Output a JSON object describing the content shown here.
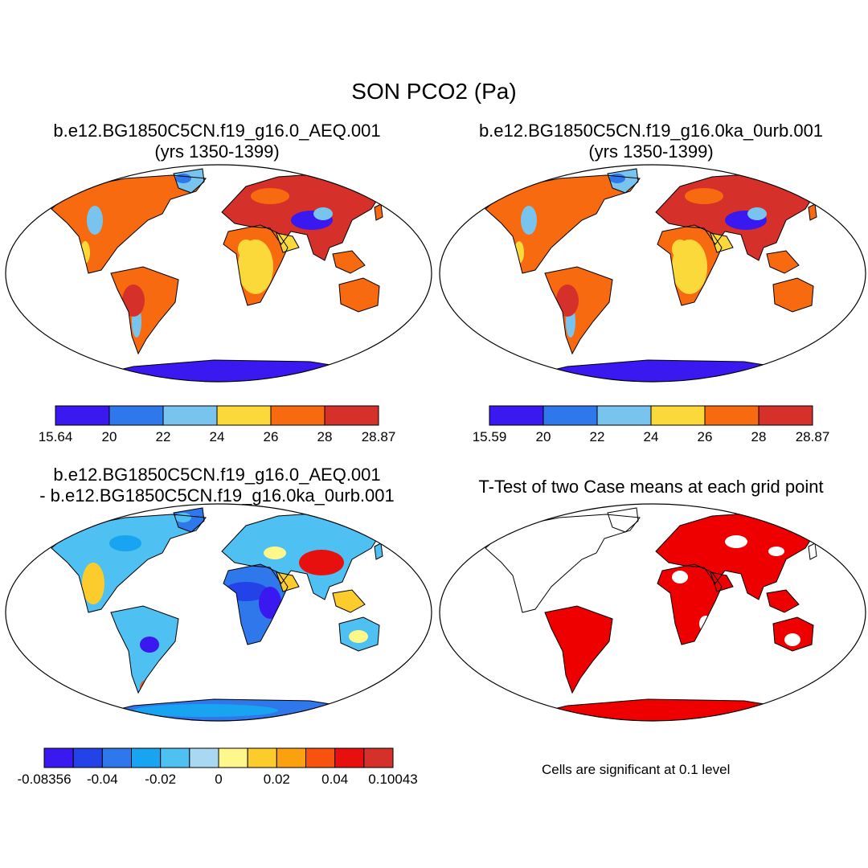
{
  "main_title": "SON PCO2 (Pa)",
  "panels": [
    {
      "title_line1": "b.e12.BG1850C5CN.f19_g16.0_AEQ.001",
      "title_line2": "(yrs 1350-1399)",
      "colorbar": {
        "labels": [
          "15.64",
          "20",
          "22",
          "24",
          "26",
          "28",
          "28.87"
        ],
        "colors": [
          "#3a18f0",
          "#2e78eb",
          "#78c4ee",
          "#fbd93a",
          "#f76a10",
          "#d5302a"
        ]
      }
    },
    {
      "title_line1": "b.e12.BG1850C5CN.f19_g16.0ka_0urb.001",
      "title_line2": "(yrs 1350-1399)",
      "colorbar": {
        "labels": [
          "15.59",
          "20",
          "22",
          "24",
          "26",
          "28",
          "28.87"
        ],
        "colors": [
          "#3a18f0",
          "#2e78eb",
          "#78c4ee",
          "#fbd93a",
          "#f76a10",
          "#d5302a"
        ]
      }
    },
    {
      "title_line1": "b.e12.BG1850C5CN.f19_g16.0_AEQ.001",
      "title_line2": "- b.e12.BG1850C5CN.f19_g16.0ka_0urb.001",
      "colorbar": {
        "labels": [
          "-0.08356",
          "-0.04",
          "-0.02",
          "0",
          "0.02",
          "0.04",
          "0.10043"
        ],
        "colors": [
          "#3a18f0",
          "#2343e8",
          "#2f78eb",
          "#18a4f0",
          "#4ec0f2",
          "#a8d8f2",
          "#fef78c",
          "#fccb2c",
          "#fba10f",
          "#f7520e",
          "#e8100e",
          "#d5302a"
        ]
      }
    },
    {
      "title_line1": "T-Test of two Case means at each grid point",
      "note": "Cells are significant at 0.1 level"
    }
  ],
  "palette": {
    "ocean": "#ffffff",
    "outline": "#000000",
    "significant": "#ee0000"
  }
}
